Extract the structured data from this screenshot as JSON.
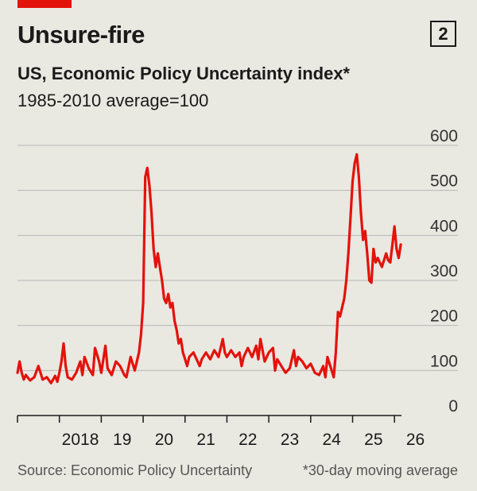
{
  "header": {
    "title": "Unsure-fire",
    "chart_number": "2",
    "subtitle": "US, Economic Policy Uncertainty index*",
    "subtitle_note": "1985-2010 average=100"
  },
  "footer": {
    "source": "Source: Economic Policy Uncertainty",
    "footnote": "*30-day moving average"
  },
  "colors": {
    "line": "#e3120b",
    "accent": "#e3120b",
    "grid": "#b7b7b7",
    "background": "#e9e8e1"
  },
  "chart_data": {
    "type": "line",
    "title": "Unsure-fire",
    "subtitle": "US, Economic Policy Uncertainty index*",
    "ylim": [
      0,
      600
    ],
    "yticks": [
      0,
      100,
      200,
      300,
      400,
      500,
      600
    ],
    "xlim": [
      2017.0,
      2026.3
    ],
    "xticks": [
      {
        "label": "2018",
        "value": 2018
      },
      {
        "label": "19",
        "value": 2019
      },
      {
        "label": "20",
        "value": 2020
      },
      {
        "label": "21",
        "value": 2021
      },
      {
        "label": "22",
        "value": 2022
      },
      {
        "label": "23",
        "value": 2023
      },
      {
        "label": "24",
        "value": 2024
      },
      {
        "label": "25",
        "value": 2025
      },
      {
        "label": "26",
        "value": 2026
      }
    ],
    "grid": true,
    "series": [
      {
        "values": [
          [
            2017.0,
            95
          ],
          [
            2017.05,
            120
          ],
          [
            2017.1,
            95
          ],
          [
            2017.15,
            80
          ],
          [
            2017.2,
            90
          ],
          [
            2017.3,
            78
          ],
          [
            2017.4,
            85
          ],
          [
            2017.5,
            110
          ],
          [
            2017.6,
            80
          ],
          [
            2017.7,
            85
          ],
          [
            2017.8,
            72
          ],
          [
            2017.9,
            88
          ],
          [
            2017.95,
            75
          ],
          [
            2018.0,
            95
          ],
          [
            2018.05,
            120
          ],
          [
            2018.1,
            160
          ],
          [
            2018.15,
            110
          ],
          [
            2018.2,
            85
          ],
          [
            2018.3,
            80
          ],
          [
            2018.4,
            95
          ],
          [
            2018.5,
            120
          ],
          [
            2018.55,
            90
          ],
          [
            2018.6,
            130
          ],
          [
            2018.7,
            105
          ],
          [
            2018.8,
            90
          ],
          [
            2018.85,
            150
          ],
          [
            2018.95,
            120
          ],
          [
            2019.0,
            95
          ],
          [
            2019.1,
            155
          ],
          [
            2019.15,
            105
          ],
          [
            2019.25,
            90
          ],
          [
            2019.35,
            120
          ],
          [
            2019.45,
            110
          ],
          [
            2019.55,
            90
          ],
          [
            2019.6,
            85
          ],
          [
            2019.7,
            130
          ],
          [
            2019.8,
            100
          ],
          [
            2019.9,
            140
          ],
          [
            2019.95,
            180
          ],
          [
            2020.0,
            250
          ],
          [
            2020.05,
            530
          ],
          [
            2020.1,
            550
          ],
          [
            2020.15,
            510
          ],
          [
            2020.2,
            450
          ],
          [
            2020.25,
            370
          ],
          [
            2020.3,
            330
          ],
          [
            2020.35,
            360
          ],
          [
            2020.4,
            330
          ],
          [
            2020.45,
            300
          ],
          [
            2020.5,
            260
          ],
          [
            2020.55,
            250
          ],
          [
            2020.6,
            270
          ],
          [
            2020.65,
            240
          ],
          [
            2020.7,
            250
          ],
          [
            2020.75,
            210
          ],
          [
            2020.8,
            190
          ],
          [
            2020.85,
            160
          ],
          [
            2020.9,
            170
          ],
          [
            2020.95,
            140
          ],
          [
            2021.0,
            125
          ],
          [
            2021.05,
            110
          ],
          [
            2021.1,
            130
          ],
          [
            2021.2,
            140
          ],
          [
            2021.3,
            120
          ],
          [
            2021.35,
            110
          ],
          [
            2021.4,
            125
          ],
          [
            2021.5,
            140
          ],
          [
            2021.6,
            125
          ],
          [
            2021.7,
            145
          ],
          [
            2021.8,
            130
          ],
          [
            2021.9,
            170
          ],
          [
            2021.95,
            140
          ],
          [
            2022.0,
            130
          ],
          [
            2022.1,
            145
          ],
          [
            2022.2,
            130
          ],
          [
            2022.3,
            140
          ],
          [
            2022.35,
            110
          ],
          [
            2022.4,
            130
          ],
          [
            2022.5,
            150
          ],
          [
            2022.6,
            130
          ],
          [
            2022.7,
            155
          ],
          [
            2022.75,
            125
          ],
          [
            2022.8,
            170
          ],
          [
            2022.9,
            120
          ],
          [
            2023.0,
            140
          ],
          [
            2023.1,
            150
          ],
          [
            2023.15,
            100
          ],
          [
            2023.2,
            125
          ],
          [
            2023.3,
            110
          ],
          [
            2023.4,
            95
          ],
          [
            2023.5,
            105
          ],
          [
            2023.6,
            145
          ],
          [
            2023.65,
            110
          ],
          [
            2023.7,
            130
          ],
          [
            2023.8,
            120
          ],
          [
            2023.9,
            105
          ],
          [
            2024.0,
            115
          ],
          [
            2024.1,
            95
          ],
          [
            2024.2,
            90
          ],
          [
            2024.3,
            110
          ],
          [
            2024.35,
            85
          ],
          [
            2024.4,
            130
          ],
          [
            2024.5,
            100
          ],
          [
            2024.55,
            85
          ],
          [
            2024.6,
            140
          ],
          [
            2024.65,
            230
          ],
          [
            2024.7,
            220
          ],
          [
            2024.8,
            260
          ],
          [
            2024.85,
            300
          ],
          [
            2024.9,
            360
          ],
          [
            2024.95,
            440
          ],
          [
            2025.0,
            520
          ],
          [
            2025.05,
            560
          ],
          [
            2025.1,
            580
          ],
          [
            2025.15,
            530
          ],
          [
            2025.2,
            450
          ],
          [
            2025.25,
            390
          ],
          [
            2025.3,
            410
          ],
          [
            2025.35,
            360
          ],
          [
            2025.4,
            300
          ],
          [
            2025.45,
            295
          ],
          [
            2025.5,
            370
          ],
          [
            2025.55,
            340
          ],
          [
            2025.6,
            350
          ],
          [
            2025.7,
            330
          ],
          [
            2025.8,
            360
          ],
          [
            2025.85,
            345
          ],
          [
            2025.9,
            340
          ],
          [
            2025.95,
            380
          ],
          [
            2026.0,
            420
          ],
          [
            2026.05,
            370
          ],
          [
            2026.1,
            350
          ],
          [
            2026.15,
            380
          ]
        ]
      }
    ]
  }
}
